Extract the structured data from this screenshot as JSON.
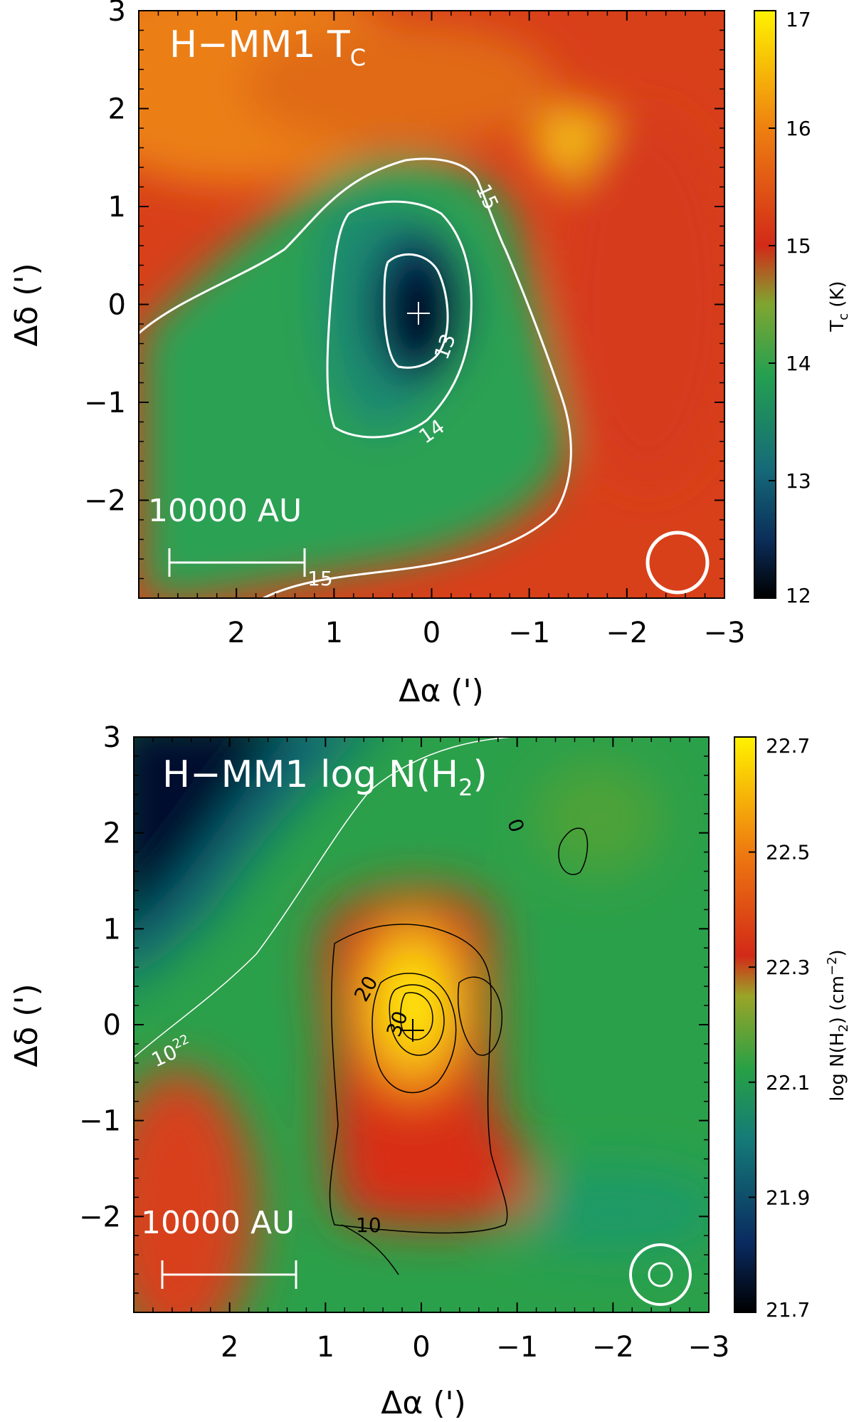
{
  "chart_data": [
    {
      "type": "heatmap",
      "title": "H−MM1 T",
      "title_sub": "C",
      "xlabel": "Δα (')",
      "ylabel": "Δδ (')",
      "xlim": [
        3,
        -3
      ],
      "ylim": [
        -3,
        3
      ],
      "xticks": [
        "2",
        "1",
        "0",
        "−1",
        "−2",
        "−3"
      ],
      "xtick_values": [
        2,
        1,
        0,
        -1,
        -2,
        -3
      ],
      "yticks": [
        "3",
        "2",
        "1",
        "0",
        "−1",
        "−2"
      ],
      "ytick_values": [
        3,
        2,
        1,
        0,
        -1,
        -2
      ],
      "colorbar": {
        "label": "T",
        "label_sub": "c",
        "label_unit": "(K)",
        "range": [
          12,
          17
        ],
        "ticks": [
          "17",
          "16",
          "15",
          "14",
          "13",
          "12"
        ],
        "tick_values": [
          17,
          16,
          15,
          14,
          13,
          12
        ]
      },
      "contour_labels": [
        "15",
        "14",
        "13",
        "15"
      ],
      "contour_levels": [
        13,
        14,
        15
      ],
      "scale_bar": {
        "label": "10000 AU"
      },
      "colors": {
        "min": "#000000",
        "low": "#0f4d70",
        "mid": "#24a050",
        "high": "#d4301a",
        "top": "#fff000",
        "contour": "#ffffff"
      }
    },
    {
      "type": "heatmap",
      "title": "H−MM1 log N(H",
      "title_sub": "2",
      "title_end": ")",
      "xlabel": "Δα (')",
      "ylabel": "Δδ (')",
      "xlim": [
        3,
        -3
      ],
      "ylim": [
        -3,
        3
      ],
      "xticks": [
        "2",
        "1",
        "0",
        "−1",
        "−2",
        "−3"
      ],
      "xtick_values": [
        2,
        1,
        0,
        -1,
        -2,
        -3
      ],
      "yticks": [
        "3",
        "2",
        "1",
        "0",
        "−1",
        "−2"
      ],
      "ytick_values": [
        3,
        2,
        1,
        0,
        -1,
        -2
      ],
      "colorbar": {
        "label": "log N(H",
        "label_sub": "2",
        "label_end": ") (cm",
        "label_sup": "−2",
        "label_close": ")",
        "range": [
          21.7,
          22.7
        ],
        "ticks": [
          "22.7",
          "22.5",
          "22.3",
          "22.1",
          "21.9",
          "21.7"
        ],
        "tick_values": [
          22.7,
          22.5,
          22.3,
          22.1,
          21.9,
          21.7
        ]
      },
      "contour_labels": [
        "20",
        "30",
        "10",
        "0",
        "10"
      ],
      "contour_label_sup": "22",
      "scale_bar": {
        "label": "10000 AU"
      },
      "colors": {
        "min": "#000000",
        "low": "#0a2a60",
        "mid": "#28a048",
        "high": "#d4301a",
        "top": "#fff000",
        "contour": "#000000"
      }
    }
  ]
}
